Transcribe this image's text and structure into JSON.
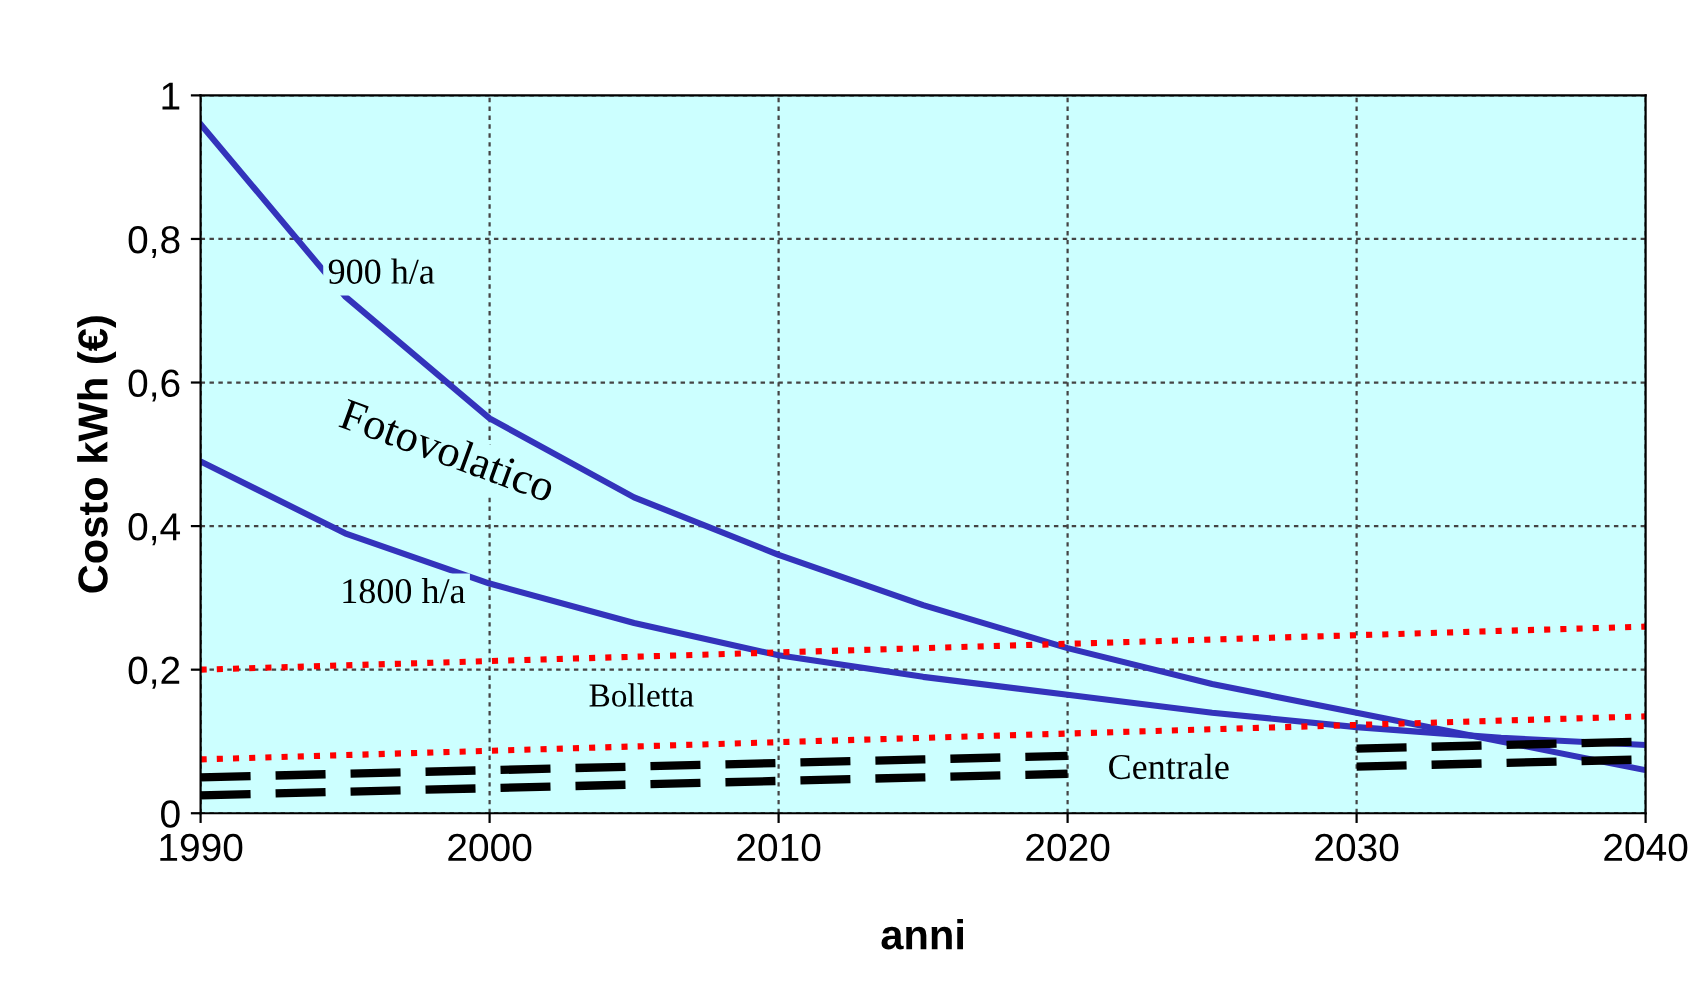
{
  "chart_data": {
    "type": "line",
    "xlabel": "anni",
    "ylabel": "Costo kWh (€)",
    "x": [
      1990,
      1995,
      2000,
      2005,
      2010,
      2015,
      2020,
      2025,
      2030,
      2035,
      2040
    ],
    "series": [
      {
        "color": "#3333bb",
        "line_style": "solid",
        "values": [
          0.96,
          0.72,
          0.55,
          0.44,
          0.36,
          0.29,
          0.23,
          0.18,
          0.14,
          0.1,
          0.06
        ]
      },
      {
        "color": "#3333bb",
        "line_style": "solid",
        "values": [
          0.49,
          0.39,
          0.32,
          0.265,
          0.22,
          0.19,
          0.165,
          0.14,
          0.12,
          0.105,
          0.095
        ]
      },
      {
        "color": "#ff0000",
        "line_style": "dotted",
        "values": [
          0.2,
          0.206,
          0.212,
          0.218,
          0.224,
          0.23,
          0.236,
          0.242,
          0.248,
          0.254,
          0.26
        ]
      },
      {
        "color": "#ff0000",
        "line_style": "dotted",
        "values": [
          0.075,
          0.081,
          0.087,
          0.093,
          0.099,
          0.105,
          0.111,
          0.117,
          0.123,
          0.129,
          0.135
        ]
      },
      {
        "color": "#000000",
        "line_style": "dashed",
        "values": [
          0.05,
          0.055,
          0.06,
          0.065,
          0.07,
          0.075,
          0.08,
          null,
          0.09,
          0.095,
          0.1
        ]
      },
      {
        "color": "#000000",
        "line_style": "dashed",
        "values": [
          0.025,
          0.03,
          0.035,
          0.04,
          0.045,
          0.05,
          0.055,
          null,
          0.065,
          0.07,
          0.075
        ]
      }
    ],
    "annotations": [
      "900 h/a",
      "Fotovolatico",
      "1800 h/a",
      "Bolletta",
      "Centrale"
    ],
    "xlim": [
      1990,
      2040
    ],
    "xticks": [
      1990,
      2000,
      2010,
      2020,
      2030,
      2040
    ],
    "ylim": [
      0,
      1
    ],
    "yticks": [
      0,
      {
        "value": 0.2,
        "label": "0,2"
      },
      {
        "value": 0.4,
        "label": "0,4"
      },
      {
        "value": 0.6,
        "label": "0,6"
      },
      {
        "value": 0.8,
        "label": "0,8"
      },
      1
    ],
    "grid": true,
    "marker": "none"
  }
}
